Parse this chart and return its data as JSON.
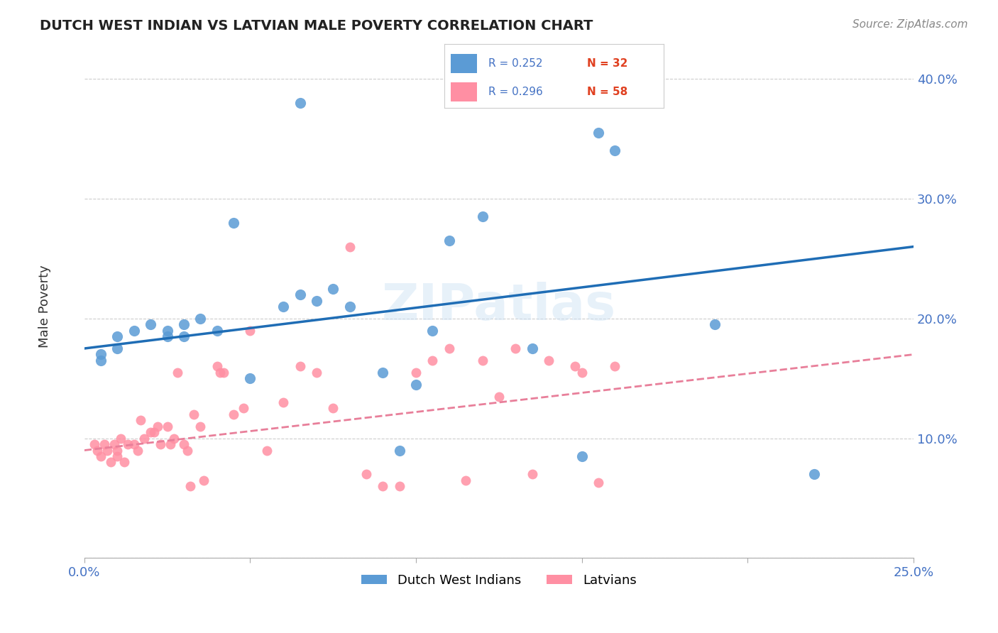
{
  "title": "DUTCH WEST INDIAN VS LATVIAN MALE POVERTY CORRELATION CHART",
  "source": "Source: ZipAtlas.com",
  "xlabel": "",
  "ylabel": "Male Poverty",
  "xlim": [
    0.0,
    0.25
  ],
  "ylim": [
    0.0,
    0.42
  ],
  "x_ticks": [
    0.0,
    0.05,
    0.1,
    0.15,
    0.2,
    0.25
  ],
  "y_ticks": [
    0.0,
    0.1,
    0.2,
    0.3,
    0.4
  ],
  "legend_blue_R": "R = 0.252",
  "legend_blue_N": "N = 32",
  "legend_pink_R": "R = 0.296",
  "legend_pink_N": "N = 58",
  "blue_color": "#5B9BD5",
  "pink_color": "#FF8FA3",
  "blue_line_color": "#1F6DB5",
  "pink_line_color": "#E87F9A",
  "axis_color": "#4472C4",
  "n_color": "#E04020",
  "grid_color": "#CCCCCC",
  "watermark": "ZIPatlas",
  "blue_scatter_x": [
    0.065,
    0.005,
    0.005,
    0.01,
    0.01,
    0.015,
    0.02,
    0.025,
    0.025,
    0.03,
    0.03,
    0.035,
    0.04,
    0.045,
    0.05,
    0.06,
    0.065,
    0.07,
    0.075,
    0.08,
    0.09,
    0.095,
    0.1,
    0.105,
    0.11,
    0.12,
    0.135,
    0.15,
    0.155,
    0.16,
    0.19,
    0.22
  ],
  "blue_scatter_y": [
    0.38,
    0.17,
    0.165,
    0.185,
    0.175,
    0.19,
    0.195,
    0.19,
    0.185,
    0.195,
    0.185,
    0.2,
    0.19,
    0.28,
    0.15,
    0.21,
    0.22,
    0.215,
    0.225,
    0.21,
    0.155,
    0.09,
    0.145,
    0.19,
    0.265,
    0.285,
    0.175,
    0.085,
    0.355,
    0.34,
    0.195,
    0.07
  ],
  "pink_scatter_x": [
    0.003,
    0.004,
    0.005,
    0.006,
    0.007,
    0.008,
    0.009,
    0.01,
    0.01,
    0.011,
    0.012,
    0.013,
    0.015,
    0.016,
    0.017,
    0.018,
    0.02,
    0.021,
    0.022,
    0.023,
    0.025,
    0.026,
    0.027,
    0.028,
    0.03,
    0.031,
    0.032,
    0.033,
    0.035,
    0.036,
    0.04,
    0.041,
    0.042,
    0.045,
    0.048,
    0.05,
    0.055,
    0.06,
    0.065,
    0.07,
    0.075,
    0.08,
    0.085,
    0.09,
    0.095,
    0.1,
    0.105,
    0.11,
    0.115,
    0.12,
    0.125,
    0.13,
    0.135,
    0.14,
    0.148,
    0.15,
    0.155,
    0.16
  ],
  "pink_scatter_y": [
    0.095,
    0.09,
    0.085,
    0.095,
    0.09,
    0.08,
    0.095,
    0.09,
    0.085,
    0.1,
    0.08,
    0.095,
    0.095,
    0.09,
    0.115,
    0.1,
    0.105,
    0.105,
    0.11,
    0.095,
    0.11,
    0.095,
    0.1,
    0.155,
    0.095,
    0.09,
    0.06,
    0.12,
    0.11,
    0.065,
    0.16,
    0.155,
    0.155,
    0.12,
    0.125,
    0.19,
    0.09,
    0.13,
    0.16,
    0.155,
    0.125,
    0.26,
    0.07,
    0.06,
    0.06,
    0.155,
    0.165,
    0.175,
    0.065,
    0.165,
    0.135,
    0.175,
    0.07,
    0.165,
    0.16,
    0.155,
    0.063,
    0.16
  ],
  "blue_line_x": [
    0.0,
    0.25
  ],
  "blue_line_y": [
    0.175,
    0.26
  ],
  "pink_line_x": [
    0.0,
    0.25
  ],
  "pink_line_y": [
    0.09,
    0.17
  ]
}
